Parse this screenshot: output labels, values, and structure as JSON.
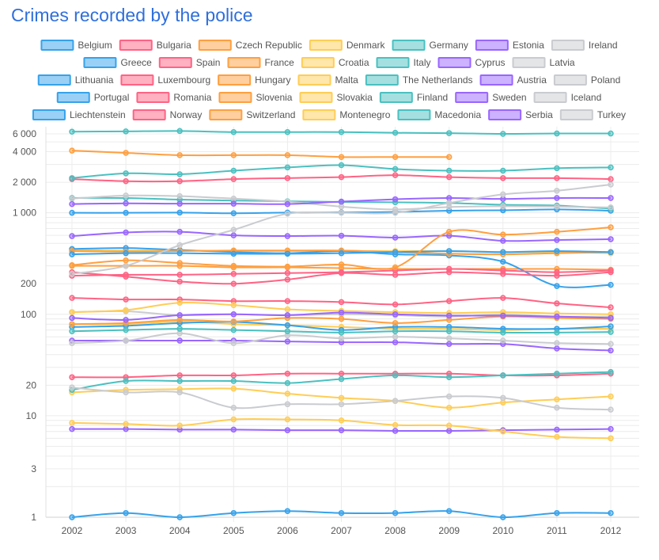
{
  "chart_data": {
    "type": "line",
    "title": "Crimes recorded by the police",
    "xlabel": "",
    "ylabel": "",
    "y_scale": "log",
    "ylim": [
      1,
      7000
    ],
    "y_ticks": [
      1,
      3,
      10,
      20,
      100,
      200,
      1000,
      2000,
      4000,
      6000
    ],
    "y_tick_labels": [
      "1",
      "3",
      "10",
      "20",
      "100",
      "200",
      "1 000",
      "2 000",
      "4 000",
      "6 000"
    ],
    "grid": true,
    "legend_position": "top",
    "x": [
      "2002",
      "2003",
      "2004",
      "2005",
      "2006",
      "2007",
      "2008",
      "2009",
      "2010",
      "2011",
      "2012"
    ],
    "series": [
      {
        "name": "Belgium",
        "color": "#36a2eb",
        "values": [
          1000,
          1000,
          1005,
          990,
          1005,
          1010,
          1020,
          1050,
          1060,
          1080,
          1050
        ]
      },
      {
        "name": "Bulgaria",
        "color": "#ff6384",
        "values": [
          145,
          140,
          140,
          135,
          135,
          132,
          125,
          135,
          145,
          128,
          117
        ]
      },
      {
        "name": "Czech Republic",
        "color": "#ff9f40",
        "values": [
          300,
          300,
          300,
          290,
          290,
          285,
          280,
          280,
          280,
          280,
          275
        ]
      },
      {
        "name": "Denmark",
        "color": "#ffcd56",
        "values": [
          430,
          425,
          425,
          420,
          420,
          420,
          420,
          420,
          410,
          410,
          400
        ]
      },
      {
        "name": "Germany",
        "color": "#4bc0c0",
        "values": [
          6300,
          6350,
          6400,
          6250,
          6250,
          6250,
          6150,
          6100,
          6000,
          6050,
          6050
        ]
      },
      {
        "name": "Estonia",
        "color": "#9966ff",
        "values": [
          55,
          55,
          55,
          55,
          54,
          53,
          53,
          51,
          51,
          46,
          44
        ]
      },
      {
        "name": "Ireland",
        "color": "#c9cbcf",
        "values": [
          105,
          107,
          98,
          100,
          98,
          100,
          98,
          95,
          100,
          95,
          95
        ]
      },
      {
        "name": "Greece",
        "color": "#36a2eb",
        "values": [
          440,
          450,
          430,
          410,
          400,
          420,
          390,
          380,
          330,
          190,
          195
        ]
      },
      {
        "name": "Spain",
        "color": "#ff6384",
        "values": [
          2150,
          2050,
          2050,
          2150,
          2200,
          2250,
          2350,
          2250,
          2200,
          2200,
          2150
        ]
      },
      {
        "name": "France",
        "color": "#ff9f40",
        "values": [
          4100,
          3900,
          3700,
          3700,
          3700,
          3550,
          3550,
          3550,
          null,
          null,
          null
        ]
      },
      {
        "name": "Croatia",
        "color": "#ffcd56",
        "values": [
          80,
          80,
          85,
          80,
          78,
          75,
          72,
          72,
          70,
          72,
          72
        ]
      },
      {
        "name": "Italy",
        "color": "#4bc0c0",
        "values": [
          2200,
          2450,
          2400,
          2600,
          2800,
          2950,
          2700,
          2600,
          2600,
          2750,
          2800
        ]
      },
      {
        "name": "Cyprus",
        "color": "#9966ff",
        "values": [
          7.4,
          7.4,
          7.3,
          7.3,
          7.2,
          7.2,
          7.1,
          7.1,
          7.2,
          7.3,
          7.4
        ]
      },
      {
        "name": "Latvia",
        "color": "#c9cbcf",
        "values": [
          52,
          55,
          65,
          52,
          62,
          58,
          60,
          58,
          55,
          52,
          51
        ]
      },
      {
        "name": "Lithuania",
        "color": "#36a2eb",
        "values": [
          75,
          77,
          82,
          84,
          78,
          70,
          75,
          75,
          72,
          72,
          76
        ]
      },
      {
        "name": "Luxembourg",
        "color": "#ff6384",
        "values": [
          24,
          24,
          25,
          25,
          26,
          26,
          26,
          26,
          25,
          25,
          26
        ]
      },
      {
        "name": "Hungary",
        "color": "#ff9f40",
        "values": [
          420,
          415,
          420,
          425,
          425,
          425,
          410,
          395,
          390,
          400,
          410
        ]
      },
      {
        "name": "Malta",
        "color": "#ffcd56",
        "values": [
          17,
          18,
          18.3,
          18.5,
          16.5,
          15,
          14,
          12,
          13.5,
          14.5,
          15.5
        ]
      },
      {
        "name": "The Netherlands",
        "color": "#4bc0c0",
        "values": [
          1400,
          1400,
          1350,
          1320,
          1300,
          1280,
          1270,
          1250,
          1200,
          1180,
          1100
        ]
      },
      {
        "name": "Austria",
        "color": "#9966ff",
        "values": [
          590,
          640,
          650,
          600,
          590,
          595,
          570,
          595,
          530,
          540,
          550
        ]
      },
      {
        "name": "Poland",
        "color": "#c9cbcf",
        "values": [
          1380,
          1480,
          1460,
          1380,
          1290,
          1150,
          1080,
          1140,
          1160,
          1150,
          1130
        ]
      },
      {
        "name": "Portugal",
        "color": "#36a2eb",
        "values": [
          390,
          400,
          400,
          395,
          395,
          400,
          410,
          420,
          410,
          420,
          410
        ]
      },
      {
        "name": "Romania",
        "color": "#ff6384",
        "values": [
          240,
          245,
          245,
          250,
          255,
          260,
          270,
          280,
          270,
          260,
          270
        ]
      },
      {
        "name": "Slovenia",
        "color": "#ff9f40",
        "values": [
          80,
          82,
          88,
          85,
          92,
          90,
          82,
          88,
          95,
          92,
          90
        ]
      },
      {
        "name": "Slovakia",
        "color": "#ffcd56",
        "values": [
          105,
          110,
          130,
          123,
          112,
          108,
          105,
          103,
          105,
          102,
          100
        ]
      },
      {
        "name": "Finland",
        "color": "#4bc0c0",
        "values": [
          18,
          22,
          22,
          22,
          21,
          23,
          25,
          24,
          25,
          26,
          27
        ]
      },
      {
        "name": "Sweden",
        "color": "#9966ff",
        "values": [
          1220,
          1240,
          1230,
          1230,
          1220,
          1290,
          1360,
          1400,
          1370,
          1400,
          1400
        ]
      },
      {
        "name": "Iceland",
        "color": "#c9cbcf",
        "values": [
          19,
          17,
          17,
          12,
          13,
          13,
          14,
          15.5,
          15,
          12,
          11.5
        ]
      },
      {
        "name": "Liechtenstein",
        "color": "#36a2eb",
        "values": [
          1,
          1.1,
          1,
          1.1,
          1.15,
          1.1,
          1.1,
          1.15,
          1,
          1.1,
          1.1
        ]
      },
      {
        "name": "Norway",
        "color": "#ff6384",
        "values": [
          260,
          235,
          210,
          200,
          220,
          255,
          245,
          260,
          250,
          240,
          260
        ]
      },
      {
        "name": "Switzerland",
        "color": "#ff9f40",
        "values": [
          305,
          340,
          320,
          300,
          295,
          310,
          290,
          650,
          610,
          650,
          720
        ]
      },
      {
        "name": "Montenegro",
        "color": "#ffcd56",
        "values": [
          8.5,
          8.3,
          8.0,
          9.2,
          9.2,
          9,
          8.1,
          8,
          7,
          6.2,
          6
        ]
      },
      {
        "name": "Macedonia",
        "color": "#4bc0c0",
        "values": [
          68,
          70,
          72,
          70,
          68,
          66,
          68,
          68,
          66,
          66,
          67
        ]
      },
      {
        "name": "Serbia",
        "color": "#9966ff",
        "values": [
          92,
          88,
          98,
          100,
          98,
          104,
          100,
          97,
          97,
          95,
          92
        ]
      },
      {
        "name": "Turkey",
        "color": "#c9cbcf",
        "values": [
          250,
          300,
          480,
          680,
          980,
          1000,
          1000,
          1250,
          1520,
          1650,
          1900
        ]
      }
    ]
  }
}
